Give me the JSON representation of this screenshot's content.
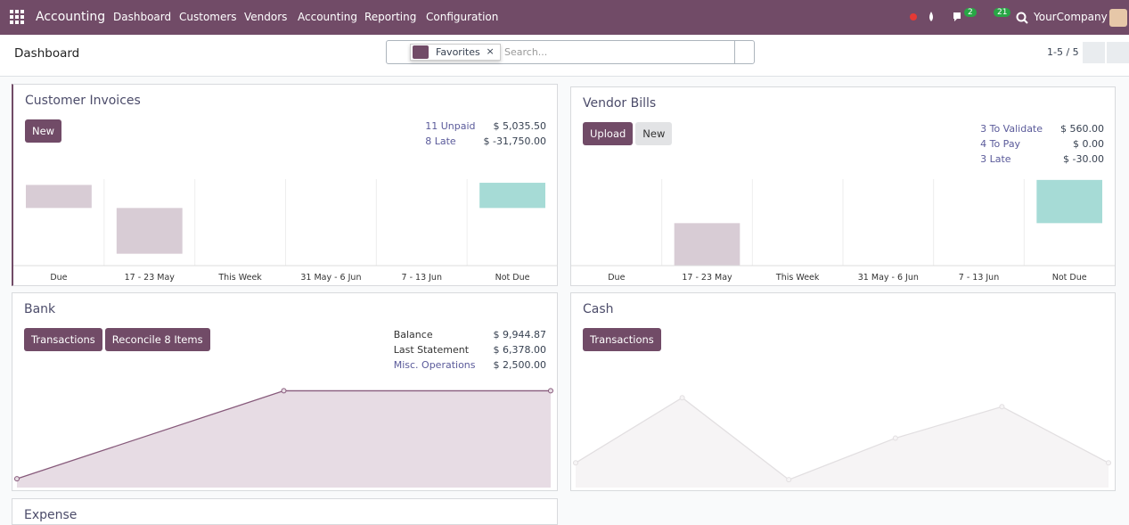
{
  "navbar": {
    "app": "Accounting",
    "menus": [
      "Dashboard",
      "Customers",
      "Vendors",
      "Accounting",
      "Reporting",
      "Configuration"
    ],
    "messages": "2",
    "activities": "21",
    "company": "YourCompany"
  },
  "control_panel": {
    "breadcrumb": "Dashboard",
    "facet": "Favorites",
    "search_placeholder": "Search...",
    "pager": "1-5 / 5"
  },
  "journals": [
    {
      "title": "Customer Invoices",
      "buttons": [
        "New"
      ],
      "stats": [
        [
          "11 Unpaid",
          "$ 5,035.50"
        ],
        [
          "8 Late",
          "$ -31,750.00"
        ]
      ],
      "chart": {
        "type": "bar",
        "categories": [
          "Due",
          "17 - 23 May",
          "This Week",
          "31 May - 6 Jun",
          "7 - 13 Jun",
          "Not Due"
        ],
        "values": [
          16000,
          -31750,
          null,
          null,
          null,
          17500
        ],
        "ylim": [
          -40000,
          20000
        ],
        "color": "#d8ccd5",
        "future_color": "#a6dbd6"
      }
    },
    {
      "title": "Vendor Bills",
      "buttons": [
        "Upload",
        "New"
      ],
      "stats": [
        [
          "3 To Validate",
          "$ 560.00"
        ],
        [
          "4 To Pay",
          "$ 0.00"
        ],
        [
          "3 Late",
          "$ -30.00"
        ]
      ],
      "chart": {
        "type": "bar",
        "categories": [
          "Due",
          "17 - 23 May",
          "This Week",
          "31 May - 6 Jun",
          "7 - 13 Jun",
          "Not Due"
        ],
        "values": [
          null,
          -560,
          null,
          null,
          null,
          570
        ],
        "ylim": [
          -560,
          580
        ],
        "color": "#d8ccd5",
        "future_color": "#a6dbd6"
      }
    },
    {
      "title": "Bank",
      "buttons": [
        "Transactions",
        "Reconcile 8 Items"
      ],
      "stats": [
        [
          "Balance",
          "$ 9,944.87"
        ],
        [
          "Last Statement",
          "$ 6,378.00"
        ],
        [
          "Misc. Operations",
          "$ 2,500.00"
        ]
      ],
      "chart": {
        "type": "line",
        "values": [
          0,
          9944.87,
          9944.87
        ],
        "ylim": [
          -1000,
          11700
        ],
        "color": "#875a7b",
        "fill": "#e7dce4"
      }
    },
    {
      "title": "Cash",
      "buttons": [
        "Transactions"
      ],
      "stats": [],
      "chart": {
        "type": "line",
        "values": [
          22,
          80,
          7,
          44,
          72,
          22
        ],
        "ylim": [
          0,
          100
        ],
        "color": "#e2dfe1",
        "fill": "#f6f4f5"
      }
    },
    {
      "title": "Expense",
      "buttons": [],
      "stats": [],
      "chart": null
    }
  ]
}
